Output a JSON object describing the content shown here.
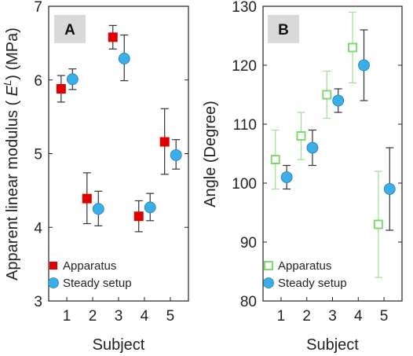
{
  "chart_data": [
    {
      "type": "scatter",
      "panel": "A",
      "xlabel": "Subject",
      "ylabel_prefix": "Apparent linear modulus ( ",
      "ylabel_symbol": "E",
      "ylabel_super": "L",
      "ylabel_suffix": ") (MPa)",
      "ylim": [
        3,
        7
      ],
      "yticks": [
        "3",
        "4",
        "5",
        "6",
        "7"
      ],
      "xticks": [
        "1",
        "2",
        "3",
        "4",
        "5"
      ],
      "legend_position": "bottom-left",
      "series": [
        {
          "name": "Apparatus",
          "marker": "square",
          "color": "#e00000",
          "x": [
            1,
            2,
            3,
            4,
            5
          ],
          "y": [
            5.88,
            4.39,
            6.58,
            4.15,
            5.16
          ],
          "err_low": [
            5.7,
            4.05,
            6.42,
            3.94,
            4.72
          ],
          "err_high": [
            6.06,
            4.74,
            6.74,
            4.36,
            5.61
          ]
        },
        {
          "name": "Steady setup",
          "marker": "circle",
          "color": "#3aaee6",
          "x": [
            1,
            2,
            3,
            4,
            5
          ],
          "y": [
            6.01,
            4.25,
            6.29,
            4.27,
            4.98
          ],
          "err_low": [
            5.87,
            4.02,
            5.99,
            4.09,
            4.79
          ],
          "err_high": [
            6.15,
            4.49,
            6.61,
            4.46,
            5.19
          ]
        }
      ]
    },
    {
      "type": "scatter",
      "panel": "B",
      "xlabel": "Subject",
      "ylabel": "Angle (Degree)",
      "ylim": [
        80,
        130
      ],
      "yticks": [
        "80",
        "90",
        "100",
        "110",
        "120",
        "130"
      ],
      "xticks": [
        "1",
        "2",
        "3",
        "4",
        "5"
      ],
      "legend_position": "bottom-left",
      "series": [
        {
          "name": "Apparatus",
          "marker": "square-open",
          "color": "#7ddb6e",
          "x": [
            1,
            2,
            3,
            4,
            5
          ],
          "y": [
            104,
            108,
            115,
            123,
            93
          ],
          "err_low": [
            99,
            104,
            111,
            117,
            84
          ],
          "err_high": [
            109,
            112,
            119,
            129,
            102
          ]
        },
        {
          "name": "Steady setup",
          "marker": "circle",
          "color": "#3aaee6",
          "x": [
            1,
            2,
            3,
            4,
            5
          ],
          "y": [
            101,
            106,
            114,
            120,
            99
          ],
          "err_low": [
            99,
            103,
            112,
            114,
            92
          ],
          "err_high": [
            103,
            109,
            116,
            126,
            106
          ]
        }
      ]
    }
  ]
}
